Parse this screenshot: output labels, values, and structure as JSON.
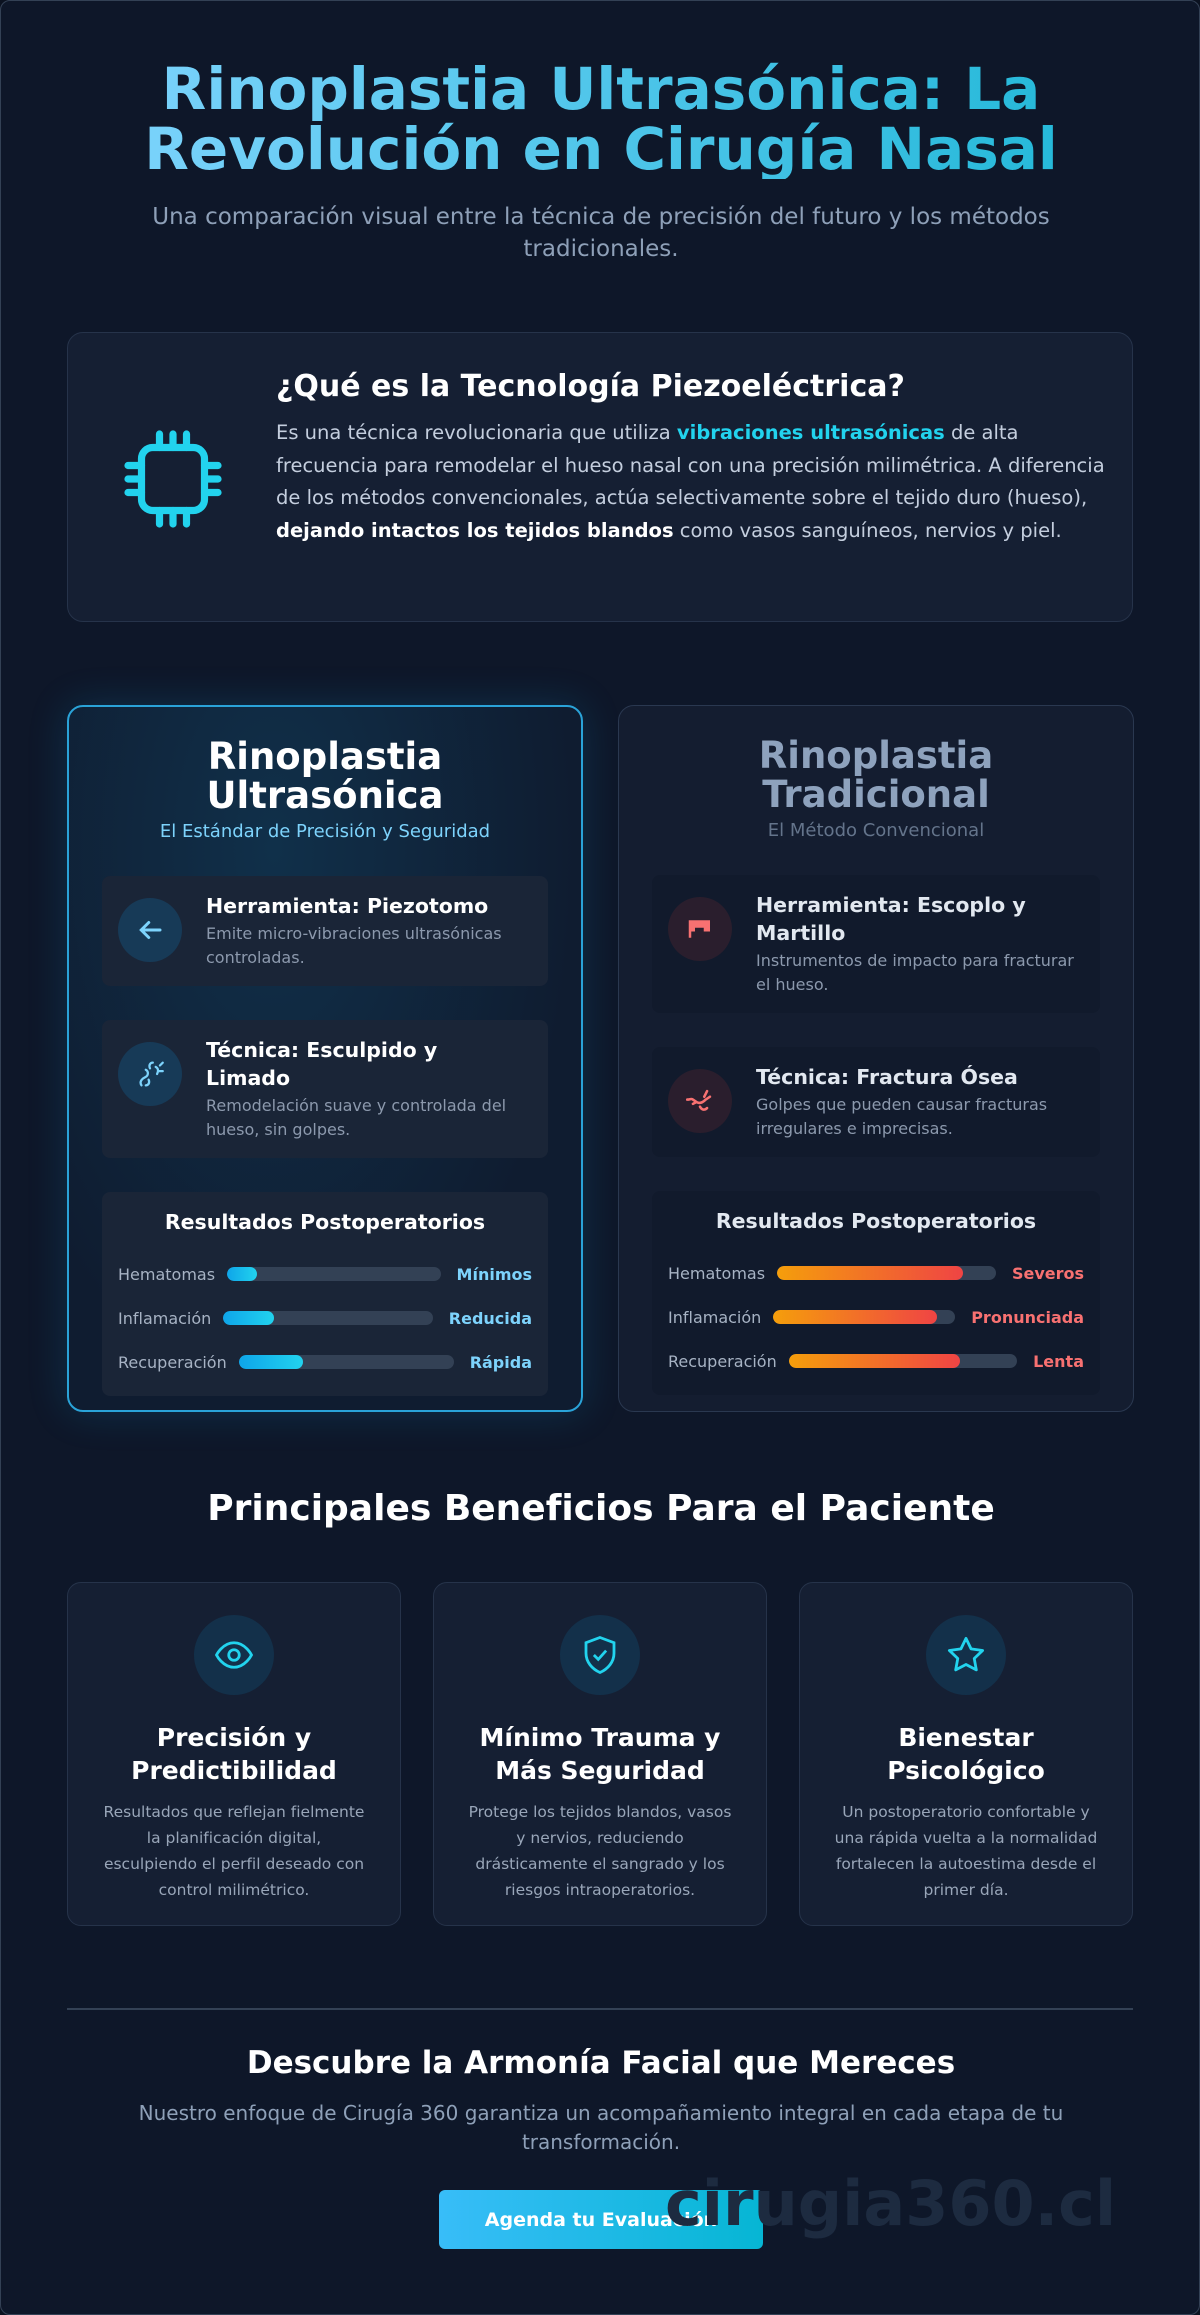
{
  "header": {
    "title": "Rinoplastia Ultrasónica: La Revolución en Cirugía Nasal",
    "subtitle": "Una comparación visual entre la técnica de precisión del futuro y los métodos tradicionales."
  },
  "intro": {
    "title": "¿Qué es la Tecnología Piezoeléctrica?",
    "text": [
      "Es una técnica revolucionaria que utiliza ",
      "vibraciones ultrasónicas",
      " de alta frecuencia para remodelar el hueso nasal con una precisión milimétrica. A diferencia de los métodos convencionales, actúa selectivamente sobre el tejido duro (hueso), ",
      "dejando intactos los tejidos blandos",
      " como vasos sanguíneos, nervios y piel."
    ]
  },
  "comparison": [
    {
      "title": "Rinoplastia Ultrasónica",
      "subtitle": "El Estándar de Precisión y Seguridad",
      "items": [
        {
          "title": "Herramienta: Piezotomo",
          "description": "Emite micro-vibraciones ultrasónicas controladas."
        },
        {
          "title": "Técnica: Esculpido y Limado",
          "description": "Remodelación suave y controlada del hueso, sin golpes."
        }
      ],
      "results": {
        "title": "Resultados Postoperatorios",
        "rows": [
          {
            "label": "Hematomas",
            "value": "Mínimos"
          },
          {
            "label": "Inflamación",
            "value": "Reducida"
          },
          {
            "label": "Recuperación",
            "value": "Rápida"
          }
        ]
      }
    },
    {
      "title": "Rinoplastia Tradicional",
      "subtitle": "El Método Convencional",
      "items": [
        {
          "title": "Herramienta: Escoplo y Martillo",
          "description": "Instrumentos de impacto para fracturar el hueso."
        },
        {
          "title": "Técnica: Fractura Ósea",
          "description": "Golpes que pueden causar fracturas irregulares e imprecisas."
        }
      ],
      "results": {
        "title": "Resultados Postoperatorios",
        "rows": [
          {
            "label": "Hematomas",
            "value": "Severos"
          },
          {
            "label": "Inflamación",
            "value": "Pronunciada"
          },
          {
            "label": "Recuperación",
            "value": "Lenta"
          }
        ]
      }
    }
  ],
  "benefits": {
    "title": "Principales Beneficios Para el Paciente",
    "cards": [
      {
        "title": "Precisión y Predictibilidad",
        "text": "Resultados que reflejan fielmente la planificación digital, esculpiendo el perfil deseado con control milimétrico."
      },
      {
        "title": "Mínimo Trauma y Más Seguridad",
        "text": "Protege los tejidos blandos, vasos y nervios, reduciendo drásticamente el sangrado y los riesgos intraoperatorios."
      },
      {
        "title": "Bienestar Psicológico",
        "text": "Un postoperatorio confortable y una rápida vuelta a la normalidad fortalecen la autoestima desde el primer día."
      }
    ]
  },
  "cta": {
    "title": "Descubre la Armonía Facial que Mereces",
    "text": "Nuestro enfoque de Cirugía 360 garantiza un acompañamiento integral en cada etapa de tu transformación.",
    "button": "Agenda tu Evaluación",
    "watermark": "cirugia360.cl"
  }
}
